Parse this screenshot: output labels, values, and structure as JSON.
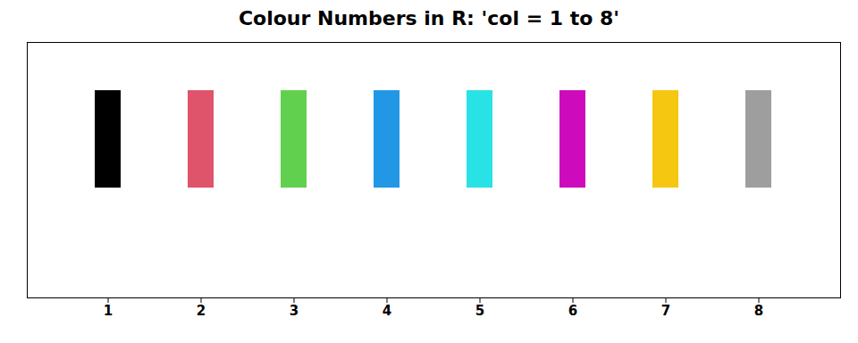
{
  "chart_data": {
    "type": "swatch",
    "title": "Colour Numbers in R: 'col = 1 to 8'",
    "categories": [
      "1",
      "2",
      "3",
      "4",
      "5",
      "6",
      "7",
      "8"
    ],
    "colors": [
      "#000000",
      "#DF536B",
      "#61D04F",
      "#2297E6",
      "#28E2E5",
      "#CD0BBC",
      "#F5C710",
      "#9E9E9E"
    ],
    "tick_labels": "x"
  }
}
